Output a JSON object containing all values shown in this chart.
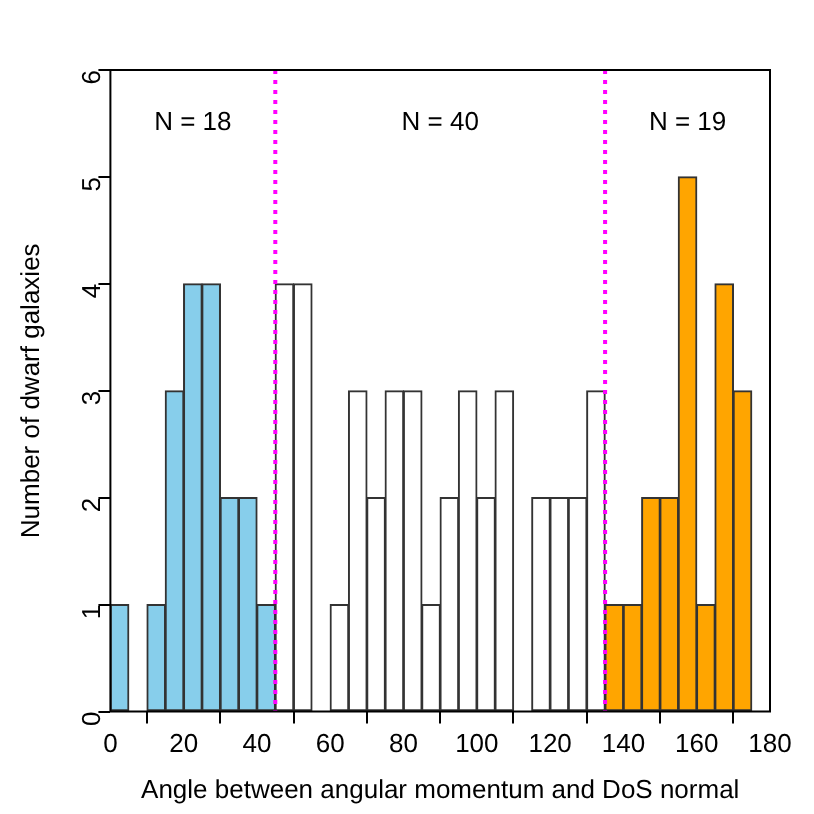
{
  "chart_data": {
    "type": "histogram",
    "xlabel": "Angle between angular momentum and DoS normal",
    "ylabel": "Number of dwarf galaxies",
    "bins": [
      0,
      5,
      10,
      15,
      20,
      25,
      30,
      35,
      40,
      45,
      50,
      55,
      60,
      65,
      70,
      75,
      80,
      85,
      90,
      95,
      100,
      105,
      110,
      115,
      120,
      125,
      130,
      135,
      140,
      145,
      150,
      155,
      160,
      165,
      170,
      175,
      180
    ],
    "values": [
      1,
      0,
      1,
      3,
      4,
      4,
      2,
      2,
      1,
      4,
      4,
      0,
      1,
      3,
      2,
      3,
      3,
      1,
      2,
      3,
      2,
      3,
      0,
      2,
      2,
      2,
      3,
      1,
      1,
      2,
      2,
      5,
      1,
      4,
      3,
      0
    ],
    "colors": [
      "#87ceeb",
      "#87ceeb",
      "#87ceeb",
      "#87ceeb",
      "#87ceeb",
      "#87ceeb",
      "#87ceeb",
      "#87ceeb",
      "#87ceeb",
      "#ffffff",
      "#ffffff",
      "#ffffff",
      "#ffffff",
      "#ffffff",
      "#ffffff",
      "#ffffff",
      "#ffffff",
      "#ffffff",
      "#ffffff",
      "#ffffff",
      "#ffffff",
      "#ffffff",
      "#ffffff",
      "#ffffff",
      "#ffffff",
      "#ffffff",
      "#ffffff",
      "#ffa500",
      "#ffa500",
      "#ffa500",
      "#ffa500",
      "#ffa500",
      "#ffa500",
      "#ffa500",
      "#ffa500",
      "#ffa500"
    ],
    "xlim": [
      0,
      180
    ],
    "xticks": [
      0,
      20,
      40,
      60,
      80,
      100,
      120,
      140,
      160,
      180
    ],
    "ylim": [
      0,
      6
    ],
    "yticks": [
      0,
      1,
      2,
      3,
      4,
      5,
      6
    ],
    "grid": false,
    "legend": false,
    "ref_lines": [
      {
        "axis": "x",
        "value": 45,
        "color": "#ff00ff",
        "line_style": "dotted"
      },
      {
        "axis": "x",
        "value": 135,
        "color": "#ff00ff",
        "line_style": "dotted"
      }
    ],
    "annotations": [
      "N = 18",
      "N = 40",
      "N = 19"
    ]
  }
}
